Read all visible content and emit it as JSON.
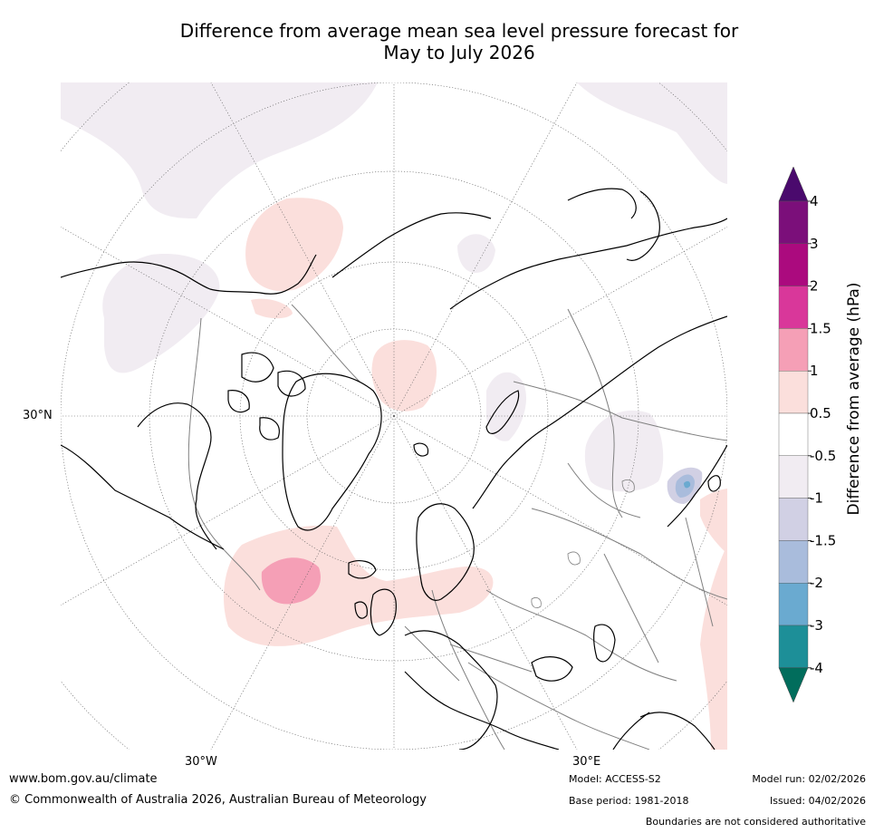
{
  "title": {
    "line1": "Difference from average mean sea level pressure forecast for",
    "line2": "May to July 2026"
  },
  "map": {
    "projection": "north-polar-stereographic",
    "lat_label": "30°N",
    "lon_labels": [
      "30°W",
      "30°E"
    ],
    "colors": {
      "ocean_land_bg": "#ffffff",
      "coast": "#000000",
      "borders": "#808080",
      "grid": "#606060"
    }
  },
  "colorbar": {
    "label": "Difference from average (hPa)",
    "ticks": [
      "4",
      "3",
      "2",
      "1.5",
      "1",
      "0.5",
      "-0.5",
      "-1",
      "-1.5",
      "-2",
      "-3",
      "-4"
    ],
    "bands": [
      {
        "range": "3 to 4",
        "color": "#7b0f7a"
      },
      {
        "range": "2 to 3",
        "color": "#ab0a7e"
      },
      {
        "range": "1.5 to 2",
        "color": "#d9379a"
      },
      {
        "range": "1 to 1.5",
        "color": "#f59fb6"
      },
      {
        "range": "0.5 to 1",
        "color": "#fbdfdc"
      },
      {
        "range": "-0.5 to 0.5",
        "color": "#ffffff"
      },
      {
        "range": "-1 to -0.5",
        "color": "#f1ecf2"
      },
      {
        "range": "-1.5 to -1",
        "color": "#d1d0e4"
      },
      {
        "range": "-2 to -1.5",
        "color": "#a9bcdc"
      },
      {
        "range": "-3 to -2",
        "color": "#6aaad0"
      },
      {
        "range": "-4 to -3",
        "color": "#1d8f98"
      }
    ],
    "top_arrow_color": "#4a0a6d",
    "bottom_arrow_color": "#016d5c"
  },
  "footer": {
    "website": "www.bom.gov.au/climate",
    "copyright": "© Commonwealth of Australia 2026, Australian Bureau of Meteorology",
    "model": "Model: ACCESS-S2",
    "base_period": "Base period: 1981-2018",
    "model_run": "Model run: 02/02/2026",
    "issued": "Issued: 04/02/2026",
    "disclaimer": "Boundaries are not considered authoritative"
  }
}
